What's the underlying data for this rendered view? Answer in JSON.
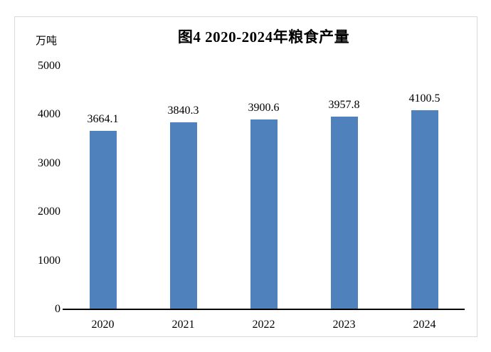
{
  "window": {
    "background": "#ffffff",
    "frame_border_color": "#d9d9d9"
  },
  "chart_data": {
    "type": "bar",
    "title": "图4 2020-2024年粮食产量",
    "unit_label": "万吨",
    "categories": [
      "2020",
      "2021",
      "2022",
      "2023",
      "2024"
    ],
    "values": [
      3664.1,
      3840.3,
      3900.6,
      3957.8,
      4100.5
    ],
    "value_labels": [
      "3664.1",
      "3840.3",
      "3900.6",
      "3957.8",
      "4100.5"
    ],
    "y_ticks": [
      "0",
      "1000",
      "2000",
      "3000",
      "4000",
      "5000"
    ],
    "ylim": [
      0,
      5000
    ],
    "xlabel": "",
    "ylabel": "万吨",
    "bar_color": "#4F81BD",
    "axis_color": "#000000",
    "grid": false,
    "legend": false,
    "data_labels_position": "above-bars"
  }
}
